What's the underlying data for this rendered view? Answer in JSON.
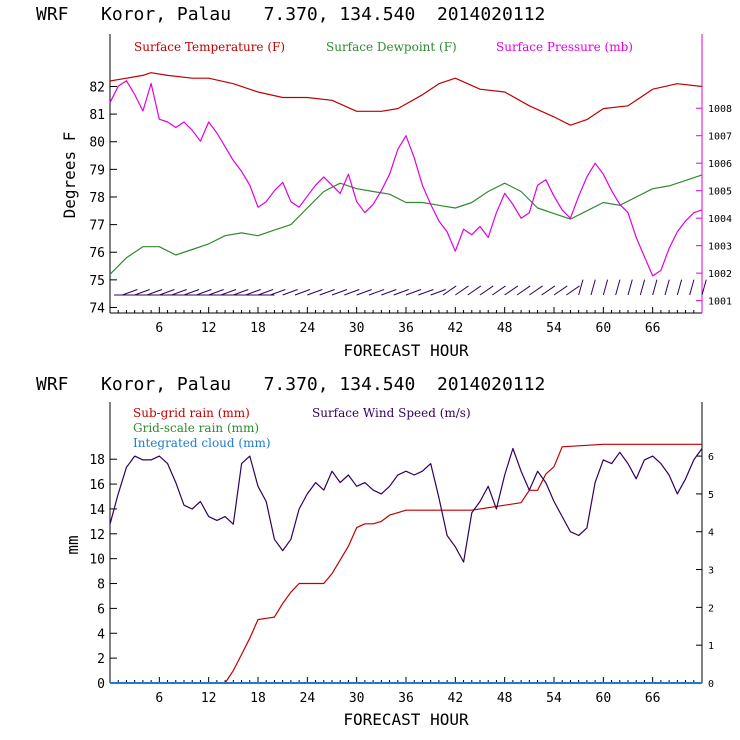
{
  "colors": {
    "temperature": "#c00000",
    "dewpoint": "#2e8b2e",
    "pressure": "#e000e0",
    "wind_barb": "#300060",
    "subgrid_rain": "#c00000",
    "grid_rain": "#2e8b2e",
    "cloud": "#1e7bd0",
    "wind_speed": "#300060"
  },
  "chart_data": [
    {
      "type": "line",
      "title": "WRF   Koror, Palau   7.370, 134.540  2014020112",
      "xlabel": "FORECAST HOUR",
      "ylabel": "Degrees F",
      "xlim": [
        0,
        72
      ],
      "ylim": [
        73.8,
        83.9
      ],
      "xticks": [
        "6",
        "12",
        "18",
        "24",
        "30",
        "36",
        "42",
        "48",
        "54",
        "60",
        "66"
      ],
      "yticks": [
        "74",
        "75",
        "76",
        "77",
        "78",
        "79",
        "80",
        "81",
        "82"
      ],
      "y2lim": [
        1000.55,
        1010.7
      ],
      "y2ticks": [
        "1001",
        "1002",
        "1003",
        "1004",
        "1005",
        "1006",
        "1007",
        "1008"
      ],
      "series": [
        {
          "name": "Surface Temperature (F)",
          "axis": "left",
          "x": [
            0,
            2,
            4,
            5,
            7,
            10,
            12,
            15,
            18,
            21,
            24,
            27,
            30,
            33,
            35,
            38,
            40,
            42,
            45,
            48,
            51,
            54,
            56,
            58,
            60,
            63,
            66,
            69,
            72
          ],
          "values": [
            82.2,
            82.3,
            82.4,
            82.5,
            82.4,
            82.3,
            82.3,
            82.1,
            81.8,
            81.6,
            81.6,
            81.5,
            81.1,
            81.1,
            81.2,
            81.7,
            82.1,
            82.3,
            81.9,
            81.8,
            81.3,
            80.9,
            80.6,
            80.8,
            81.2,
            81.3,
            81.9,
            82.1,
            82.0
          ]
        },
        {
          "name": "Surface Dewpoint (F)",
          "axis": "left",
          "x": [
            0,
            2,
            4,
            6,
            8,
            10,
            12,
            14,
            16,
            18,
            20,
            22,
            24,
            26,
            28,
            30,
            32,
            34,
            36,
            38,
            40,
            42,
            44,
            46,
            48,
            50,
            52,
            54,
            56,
            58,
            60,
            62,
            64,
            66,
            68,
            70,
            72
          ],
          "values": [
            75.2,
            75.8,
            76.2,
            76.2,
            75.9,
            76.1,
            76.3,
            76.6,
            76.7,
            76.6,
            76.8,
            77.0,
            77.6,
            78.2,
            78.5,
            78.3,
            78.2,
            78.1,
            77.8,
            77.8,
            77.7,
            77.6,
            77.8,
            78.2,
            78.5,
            78.2,
            77.6,
            77.4,
            77.2,
            77.5,
            77.8,
            77.7,
            78.0,
            78.3,
            78.4,
            78.6,
            78.8
          ]
        },
        {
          "name": "Surface Pressure (mb)",
          "axis": "right",
          "x": [
            0,
            1,
            2,
            3,
            4,
            5,
            6,
            7,
            8,
            9,
            10,
            11,
            12,
            13,
            14,
            15,
            16,
            17,
            18,
            19,
            20,
            21,
            22,
            23,
            24,
            25,
            26,
            27,
            28,
            29,
            30,
            31,
            32,
            33,
            34,
            35,
            36,
            37,
            38,
            39,
            40,
            41,
            42,
            43,
            44,
            45,
            46,
            47,
            48,
            49,
            50,
            51,
            52,
            53,
            54,
            55,
            56,
            57,
            58,
            59,
            60,
            61,
            62,
            63,
            64,
            65,
            66,
            67,
            68,
            69,
            70,
            71,
            72
          ],
          "values": [
            1008.2,
            1008.8,
            1009.0,
            1008.5,
            1007.9,
            1008.9,
            1007.6,
            1007.5,
            1007.3,
            1007.5,
            1007.2,
            1006.8,
            1007.5,
            1007.1,
            1006.6,
            1006.1,
            1005.7,
            1005.2,
            1004.4,
            1004.6,
            1005.0,
            1005.3,
            1004.6,
            1004.4,
            1004.8,
            1005.2,
            1005.5,
            1005.2,
            1004.9,
            1005.6,
            1004.6,
            1004.2,
            1004.5,
            1005.0,
            1005.6,
            1006.5,
            1007.0,
            1006.2,
            1005.2,
            1004.5,
            1003.9,
            1003.5,
            1002.8,
            1003.6,
            1003.4,
            1003.7,
            1003.3,
            1004.2,
            1004.9,
            1004.5,
            1004.0,
            1004.2,
            1005.2,
            1005.4,
            1004.8,
            1004.3,
            1004.0,
            1004.8,
            1005.5,
            1006.0,
            1005.6,
            1005.0,
            1004.5,
            1004.2,
            1003.3,
            1002.6,
            1001.9,
            1002.1,
            1002.9,
            1003.5,
            1003.9,
            1004.2,
            1004.3
          ]
        }
      ],
      "wind_barbs": "row of wind barbs along bottom of plot"
    },
    {
      "type": "line",
      "title": "WRF   Koror, Palau   7.370, 134.540  2014020112",
      "xlabel": "FORECAST HOUR",
      "ylabel": "mm",
      "xlim": [
        0,
        72
      ],
      "ylim": [
        0,
        22.6
      ],
      "xticks": [
        "6",
        "12",
        "18",
        "24",
        "30",
        "36",
        "42",
        "48",
        "54",
        "60",
        "66"
      ],
      "yticks": [
        "0",
        "2",
        "4",
        "6",
        "8",
        "10",
        "12",
        "14",
        "16",
        "18"
      ],
      "y2lim": [
        0,
        7.43
      ],
      "y2ticks": [
        "0",
        "1",
        "2",
        "3",
        "4",
        "5",
        "6"
      ],
      "series": [
        {
          "name": "Sub-grid rain (mm)",
          "axis": "left",
          "x": [
            0,
            14,
            15,
            16,
            17,
            18,
            19,
            20,
            21,
            22,
            23,
            24,
            25,
            26,
            27,
            28,
            29,
            30,
            31,
            32,
            33,
            34,
            35,
            36,
            40,
            44,
            48,
            50,
            51,
            52,
            53,
            54,
            55,
            60,
            66,
            72
          ],
          "values": [
            0,
            0,
            1.0,
            2.3,
            3.6,
            5.1,
            5.2,
            5.3,
            6.4,
            7.3,
            8.0,
            8.0,
            8.0,
            8.0,
            8.8,
            9.9,
            11.0,
            12.5,
            12.8,
            12.8,
            13.0,
            13.5,
            13.7,
            13.9,
            13.9,
            13.9,
            14.3,
            14.5,
            15.5,
            15.5,
            16.8,
            17.4,
            19.0,
            19.2,
            19.2,
            19.2
          ]
        },
        {
          "name": "Grid-scale rain (mm)",
          "axis": "left",
          "x": [
            0,
            72
          ],
          "values": [
            0,
            0
          ]
        },
        {
          "name": "Integrated cloud (mm)",
          "axis": "left",
          "x": [
            0,
            72
          ],
          "values": [
            0,
            0
          ]
        },
        {
          "name": "Surface Wind Speed (m/s)",
          "axis": "right",
          "x": [
            0,
            1,
            2,
            3,
            4,
            5,
            6,
            7,
            8,
            9,
            10,
            11,
            12,
            13,
            14,
            15,
            16,
            17,
            18,
            19,
            20,
            21,
            22,
            23,
            24,
            25,
            26,
            27,
            28,
            29,
            30,
            31,
            32,
            33,
            34,
            35,
            36,
            37,
            38,
            39,
            40,
            41,
            42,
            43,
            44,
            45,
            46,
            47,
            48,
            49,
            50,
            51,
            52,
            53,
            54,
            55,
            56,
            57,
            58,
            59,
            60,
            61,
            62,
            63,
            64,
            65,
            66,
            67,
            68,
            69,
            70,
            71,
            72
          ],
          "values": [
            4.2,
            5.0,
            5.7,
            6.0,
            5.9,
            5.9,
            6.0,
            5.8,
            5.3,
            4.7,
            4.6,
            4.8,
            4.4,
            4.3,
            4.4,
            4.2,
            5.8,
            6.0,
            5.2,
            4.8,
            3.8,
            3.5,
            3.8,
            4.6,
            5.0,
            5.3,
            5.1,
            5.6,
            5.3,
            5.5,
            5.2,
            5.3,
            5.1,
            5.0,
            5.2,
            5.5,
            5.6,
            5.5,
            5.6,
            5.8,
            4.9,
            3.9,
            3.6,
            3.2,
            4.5,
            4.8,
            5.2,
            4.6,
            5.5,
            6.2,
            5.6,
            5.1,
            5.6,
            5.3,
            4.8,
            4.4,
            4.0,
            3.9,
            4.1,
            5.3,
            5.9,
            5.8,
            6.1,
            5.8,
            5.4,
            5.9,
            6.0,
            5.8,
            5.5,
            5.0,
            5.4,
            5.9,
            6.2
          ]
        }
      ]
    }
  ]
}
